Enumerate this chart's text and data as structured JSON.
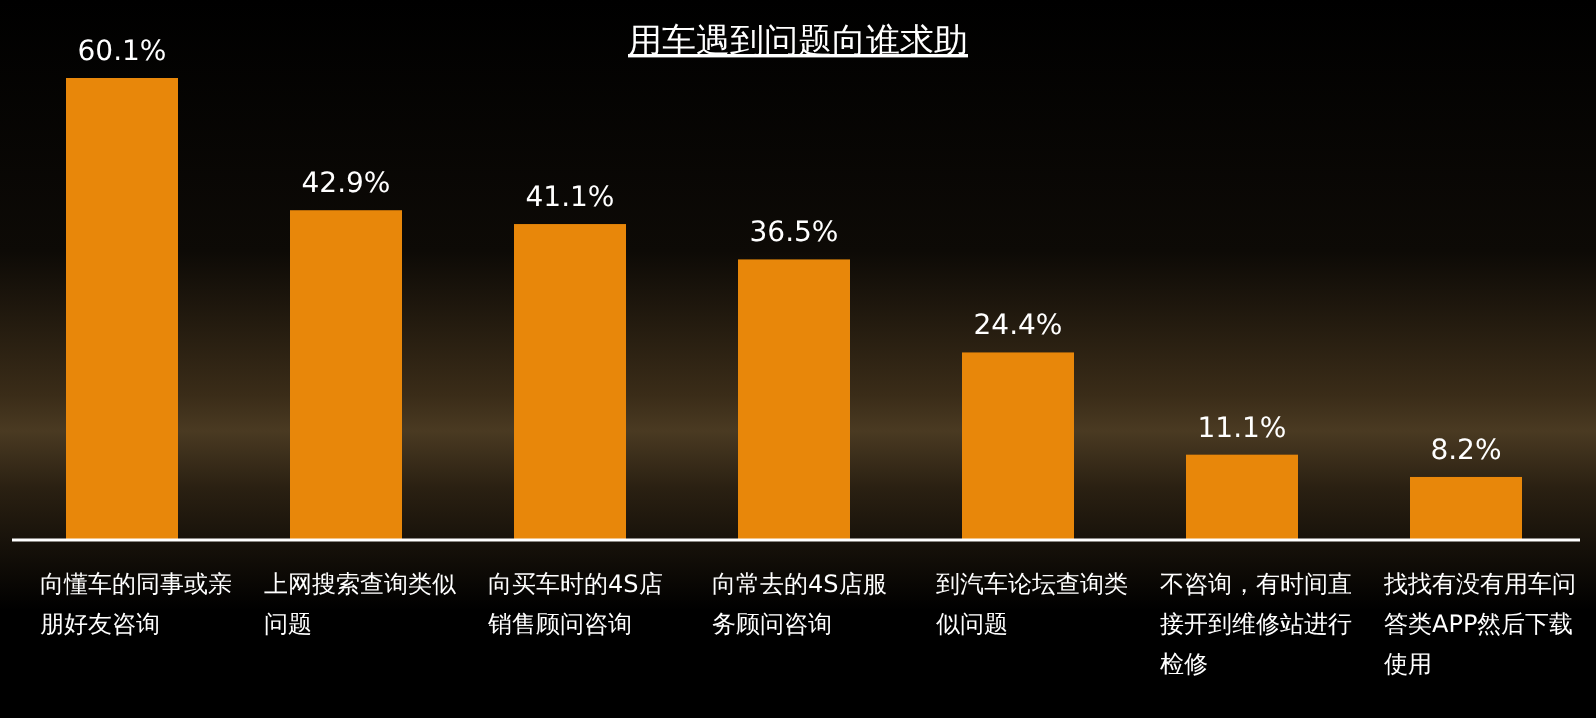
{
  "chart_data": {
    "type": "bar",
    "title": "用车遇到问题向谁求助",
    "categories": [
      "向懂车的同事或亲朋好友咨询",
      "上网搜索查询类似问题",
      "向买车时的4S店销售顾问咨询",
      "向常去的4S店服务顾问咨询",
      "到汽车论坛查询类似问题",
      "不咨询，有时间直接开到维修站进行检修",
      "找找有没有用车问答类APP然后下载使用"
    ],
    "value_labels": [
      "60.1%",
      "42.9%",
      "41.1%",
      "36.5%",
      "24.4%",
      "11.1%",
      "8.2%"
    ],
    "values": [
      60.1,
      42.9,
      41.1,
      36.5,
      24.4,
      11.1,
      8.2
    ],
    "color": "#e8870a"
  }
}
